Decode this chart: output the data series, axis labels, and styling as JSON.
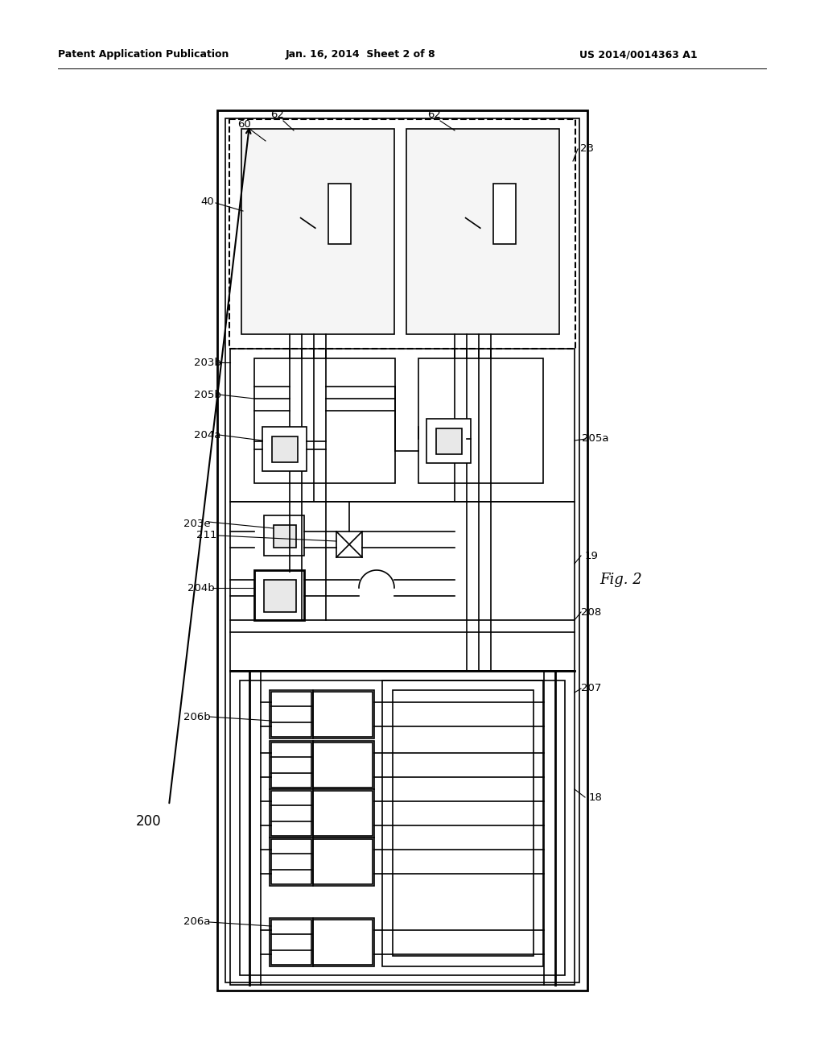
{
  "bg_color": "#ffffff",
  "line_color": "#000000",
  "header_left": "Patent Application Publication",
  "header_mid": "Jan. 16, 2014  Sheet 2 of 8",
  "header_right": "US 2014/0014363 A1",
  "fig_label": "Fig. 2"
}
